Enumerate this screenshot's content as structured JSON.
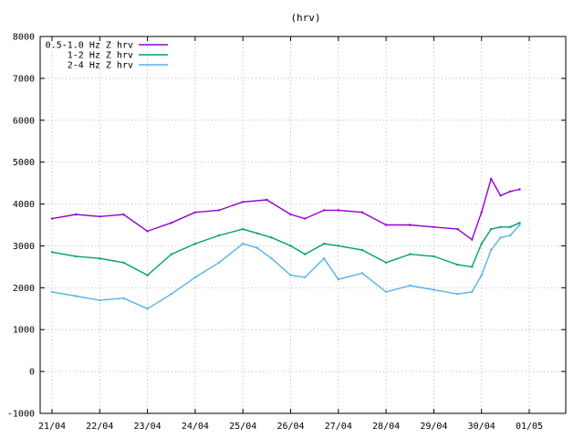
{
  "chart_data": {
    "type": "line",
    "title": "(hrv)",
    "xlabel": "",
    "ylabel": "",
    "ylim": [
      -1000,
      8000
    ],
    "yticks": [
      -1000,
      0,
      1000,
      2000,
      3000,
      4000,
      5000,
      6000,
      7000,
      8000
    ],
    "xlim": [
      0,
      10.9
    ],
    "xtick_positions": [
      0,
      1,
      2,
      3,
      4,
      5,
      6,
      7,
      8,
      9,
      10
    ],
    "xtick_labels": [
      "21/04",
      "22/04",
      "23/04",
      "24/04",
      "25/04",
      "26/04",
      "27/04",
      "28/04",
      "29/04",
      "30/04",
      "01/05"
    ],
    "grid": true,
    "legend_position": "top-left",
    "series": [
      {
        "name": "0.5-1.0 Hz Z hrv",
        "color": "#9400d3",
        "x": [
          0,
          0.5,
          1,
          1.5,
          2,
          2.5,
          3,
          3.5,
          4,
          4.5,
          5,
          5.3,
          5.7,
          6,
          6.5,
          7,
          7.5,
          8,
          8.5,
          8.8,
          9,
          9.2,
          9.4,
          9.6,
          9.8
        ],
        "values": [
          3650,
          3750,
          3700,
          3750,
          3350,
          3550,
          3800,
          3850,
          4050,
          4100,
          3750,
          3650,
          3850,
          3850,
          3800,
          3500,
          3500,
          3450,
          3400,
          3150,
          3800,
          4600,
          4200,
          4300,
          4350
        ]
      },
      {
        "name": "1-2 Hz Z hrv",
        "color": "#009e73",
        "x": [
          0,
          0.5,
          1,
          1.5,
          2,
          2.5,
          3,
          3.5,
          4,
          4.3,
          4.6,
          5,
          5.3,
          5.7,
          6,
          6.5,
          7,
          7.5,
          8,
          8.5,
          8.8,
          9,
          9.2,
          9.4,
          9.6,
          9.8
        ],
        "values": [
          2850,
          2750,
          2700,
          2600,
          2300,
          2800,
          3050,
          3250,
          3400,
          3300,
          3200,
          3000,
          2800,
          3050,
          3000,
          2900,
          2600,
          2800,
          2750,
          2550,
          2500,
          3050,
          3400,
          3450,
          3450,
          3550
        ]
      },
      {
        "name": "2-4 Hz Z hrv",
        "color": "#56b4e9",
        "x": [
          0,
          0.5,
          1,
          1.5,
          2,
          2.5,
          3,
          3.5,
          4,
          4.3,
          4.6,
          5,
          5.3,
          5.7,
          6,
          6.5,
          7,
          7.5,
          8,
          8.5,
          8.8,
          9,
          9.2,
          9.4,
          9.6,
          9.8
        ],
        "values": [
          1900,
          1800,
          1700,
          1750,
          1500,
          1850,
          2250,
          2600,
          3050,
          2950,
          2700,
          2300,
          2250,
          2700,
          2200,
          2350,
          1900,
          2050,
          1950,
          1850,
          1900,
          2300,
          2900,
          3200,
          3250,
          3500
        ]
      }
    ]
  }
}
